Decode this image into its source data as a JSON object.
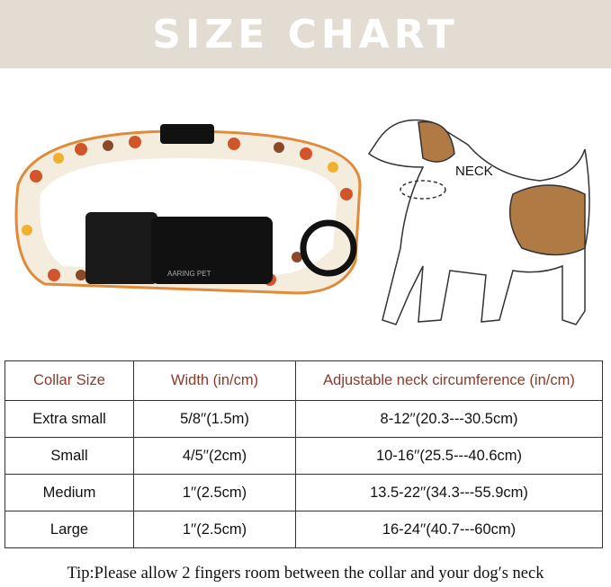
{
  "banner": {
    "title": "SIZE CHART"
  },
  "illustration": {
    "neck_label": "NECK",
    "brand_logo": "AARING PET"
  },
  "table": {
    "headers": [
      "Collar Size",
      "Width (in/cm)",
      "Adjustable neck circumference (in/cm)"
    ],
    "rows": [
      [
        "Extra small",
        "5/8′′(1.5m)",
        "8-12′′(20.3---30.5cm)"
      ],
      [
        "Small",
        "4/5′′(2cm)",
        "10-16′′(25.5---40.6cm)"
      ],
      [
        "Medium",
        "1′′(2.5cm)",
        "13.5-22′′(34.3---55.9cm)"
      ],
      [
        "Large",
        "1′′(2.5cm)",
        "16-24′′(40.7---60cm)"
      ]
    ]
  },
  "tip": "Tip:Please allow 2 fingers room between the collar and your dog′s neck",
  "colors": {
    "banner": "#e2dcd2",
    "header_text": "#8b3a2a",
    "dog_patch": "#b07a45"
  }
}
